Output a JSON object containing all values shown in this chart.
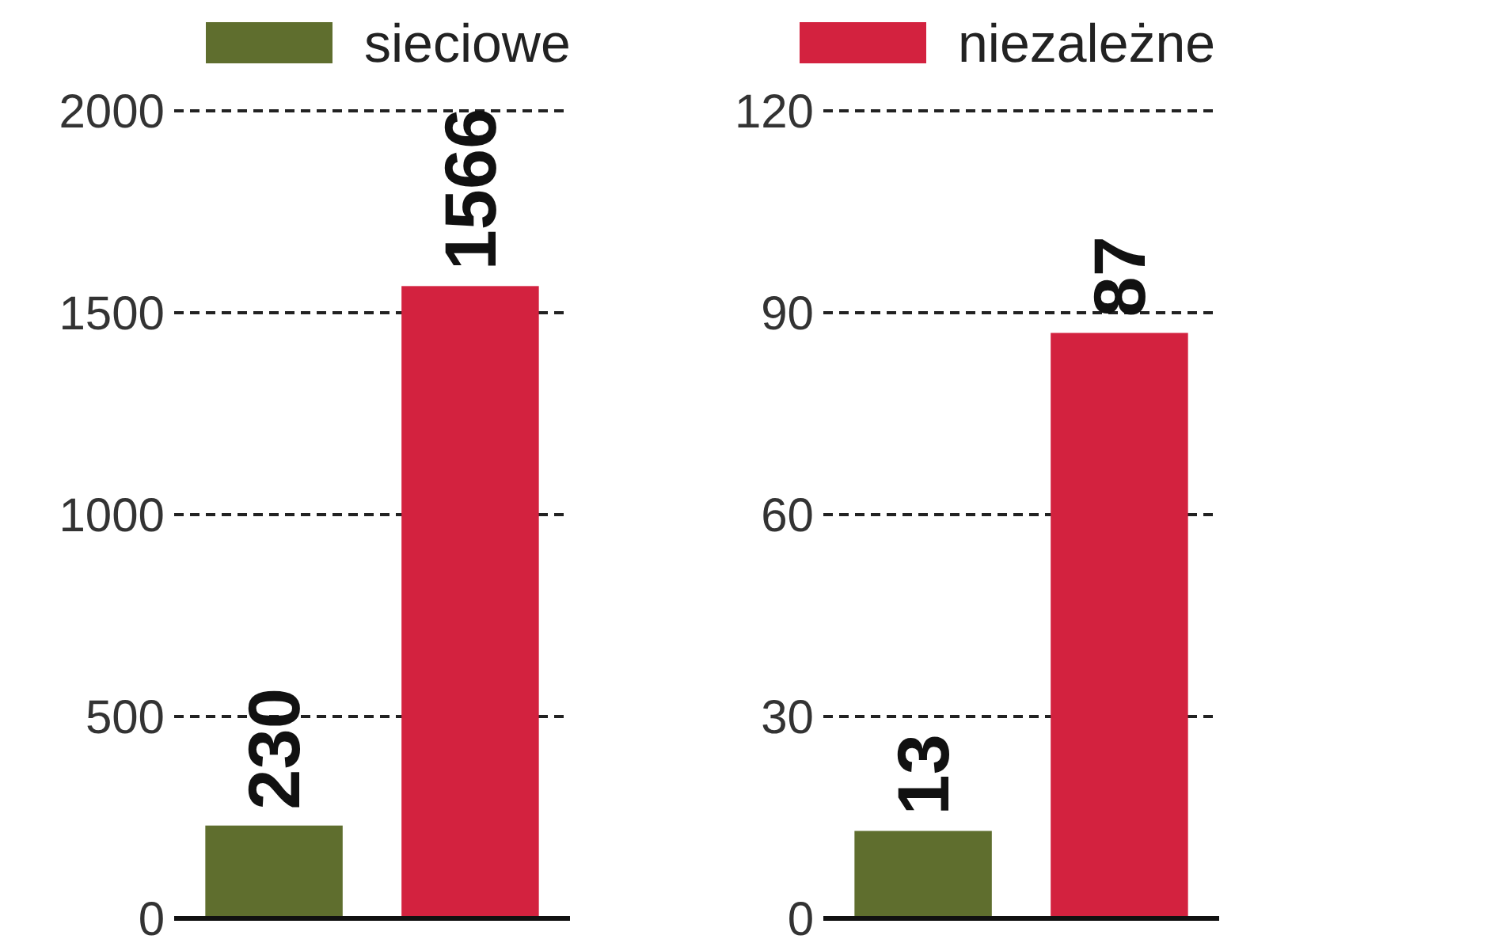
{
  "chart_data": [
    {
      "type": "bar",
      "categories": [
        null
      ],
      "series": [
        {
          "name": "sieciowe",
          "color": "#5f6e2e",
          "values": [
            230
          ]
        },
        {
          "name": "niezależne",
          "color": "#d3223f",
          "values": [
            1566
          ]
        }
      ],
      "ylim": [
        0,
        2000
      ],
      "yticks": [
        0,
        500,
        1000,
        1500,
        2000
      ],
      "grid": "y",
      "data_labels": true,
      "legend": "top"
    },
    {
      "type": "bar",
      "categories": [
        null
      ],
      "series": [
        {
          "color": "#5f6e2e",
          "values": [
            13
          ]
        },
        {
          "color": "#d3223f",
          "values": [
            87
          ]
        }
      ],
      "ylim": [
        0,
        120
      ],
      "yticks": [
        0,
        30,
        60,
        90,
        120
      ],
      "grid": "y",
      "data_labels": true
    }
  ]
}
